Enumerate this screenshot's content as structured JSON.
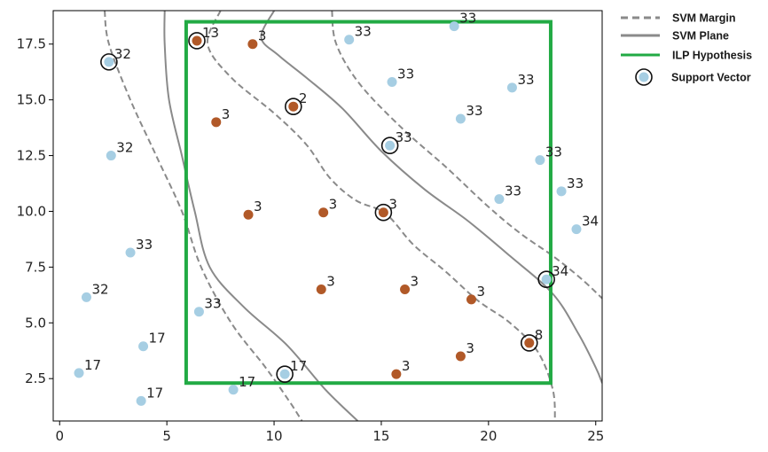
{
  "colors": {
    "class_a": "#a6cee3",
    "class_b": "#b15928",
    "svm_line": "#8a8a8a",
    "ilp_box": "#22aa44",
    "support_ring": "#111111",
    "axis": "#000000"
  },
  "legend": {
    "position": "outside-right",
    "items": [
      {
        "key": "margin",
        "label": "SVM Margin",
        "style": "dashed"
      },
      {
        "key": "plane",
        "label": "SVM Plane",
        "style": "solid"
      },
      {
        "key": "ilp",
        "label": "ILP Hypothesis",
        "style": "box"
      },
      {
        "key": "sv",
        "label": "Support Vector",
        "style": "ring"
      }
    ]
  },
  "chart_data": {
    "type": "scatter",
    "title": "",
    "xlabel": "",
    "ylabel": "",
    "xlim": [
      -0.3,
      25.3
    ],
    "ylim": [
      0.6,
      19.0
    ],
    "grid": false,
    "xticks": [
      0,
      5,
      10,
      15,
      20,
      25
    ],
    "yticks": [
      2.5,
      5.0,
      7.5,
      10.0,
      12.5,
      15.0,
      17.5
    ],
    "xtick_labels": [
      "0",
      "5",
      "10",
      "15",
      "20",
      "25"
    ],
    "ytick_labels": [
      "2.5",
      "5.0",
      "7.5",
      "10.0",
      "12.5",
      "15.0",
      "17.5"
    ],
    "ilp_box": {
      "x": [
        5.9,
        22.9
      ],
      "y": [
        2.3,
        18.5
      ]
    },
    "points": [
      {
        "x": 2.3,
        "y": 16.7,
        "label": "32",
        "cls": "a",
        "sv": true
      },
      {
        "x": 2.4,
        "y": 12.5,
        "label": "32",
        "cls": "a",
        "sv": false
      },
      {
        "x": 3.3,
        "y": 8.15,
        "label": "33",
        "cls": "a",
        "sv": false
      },
      {
        "x": 1.25,
        "y": 6.15,
        "label": "32",
        "cls": "a",
        "sv": false
      },
      {
        "x": 3.9,
        "y": 3.95,
        "label": "17",
        "cls": "a",
        "sv": false
      },
      {
        "x": 0.9,
        "y": 2.75,
        "label": "17",
        "cls": "a",
        "sv": false
      },
      {
        "x": 3.8,
        "y": 1.5,
        "label": "17",
        "cls": "a",
        "sv": false
      },
      {
        "x": 6.5,
        "y": 5.5,
        "label": "33",
        "cls": "a",
        "sv": false
      },
      {
        "x": 8.1,
        "y": 2.0,
        "label": "17",
        "cls": "a",
        "sv": false
      },
      {
        "x": 10.5,
        "y": 2.7,
        "label": "17",
        "cls": "a",
        "sv": true
      },
      {
        "x": 13.5,
        "y": 17.7,
        "label": "33",
        "cls": "a",
        "sv": false
      },
      {
        "x": 18.4,
        "y": 18.3,
        "label": "33",
        "cls": "a",
        "sv": false
      },
      {
        "x": 15.5,
        "y": 15.8,
        "label": "33",
        "cls": "a",
        "sv": false
      },
      {
        "x": 21.1,
        "y": 15.55,
        "label": "33",
        "cls": "a",
        "sv": false
      },
      {
        "x": 18.7,
        "y": 14.15,
        "label": "33",
        "cls": "a",
        "sv": false
      },
      {
        "x": 15.4,
        "y": 12.95,
        "label": "33",
        "cls": "a",
        "sv": true
      },
      {
        "x": 22.4,
        "y": 12.3,
        "label": "33",
        "cls": "a",
        "sv": false
      },
      {
        "x": 20.5,
        "y": 10.55,
        "label": "33",
        "cls": "a",
        "sv": false
      },
      {
        "x": 23.4,
        "y": 10.9,
        "label": "33",
        "cls": "a",
        "sv": false
      },
      {
        "x": 24.1,
        "y": 9.2,
        "label": "34",
        "cls": "a",
        "sv": false
      },
      {
        "x": 22.7,
        "y": 6.95,
        "label": "34",
        "cls": "a",
        "sv": true
      },
      {
        "x": 6.4,
        "y": 17.65,
        "label": "13",
        "cls": "b",
        "sv": true
      },
      {
        "x": 9.0,
        "y": 17.5,
        "label": "3",
        "cls": "b",
        "sv": false
      },
      {
        "x": 10.9,
        "y": 14.7,
        "label": "2",
        "cls": "b",
        "sv": true
      },
      {
        "x": 7.3,
        "y": 14.0,
        "label": "3",
        "cls": "b",
        "sv": false
      },
      {
        "x": 8.8,
        "y": 9.85,
        "label": "3",
        "cls": "b",
        "sv": false
      },
      {
        "x": 12.3,
        "y": 9.95,
        "label": "3",
        "cls": "b",
        "sv": false
      },
      {
        "x": 15.1,
        "y": 9.95,
        "label": "3",
        "cls": "b",
        "sv": true
      },
      {
        "x": 12.2,
        "y": 6.5,
        "label": "3",
        "cls": "b",
        "sv": false
      },
      {
        "x": 16.1,
        "y": 6.5,
        "label": "3",
        "cls": "b",
        "sv": false
      },
      {
        "x": 19.2,
        "y": 6.05,
        "label": "3",
        "cls": "b",
        "sv": false
      },
      {
        "x": 21.9,
        "y": 4.1,
        "label": "8",
        "cls": "b",
        "sv": true
      },
      {
        "x": 18.7,
        "y": 3.5,
        "label": "3",
        "cls": "b",
        "sv": false
      },
      {
        "x": 15.7,
        "y": 2.7,
        "label": "3",
        "cls": "b",
        "sv": false
      }
    ],
    "curves": [
      {
        "name": "margin",
        "style": "dashed",
        "points": [
          [
            2.1,
            19.0
          ],
          [
            2.3,
            17.5
          ],
          [
            3.3,
            15.0
          ],
          [
            4.5,
            12.5
          ],
          [
            5.7,
            10.0
          ],
          [
            6.6,
            7.5
          ],
          [
            8.0,
            5.0
          ],
          [
            9.6,
            3.0
          ],
          [
            10.7,
            1.5
          ],
          [
            11.3,
            0.6
          ]
        ]
      },
      {
        "name": "plane",
        "style": "solid",
        "points": [
          [
            4.9,
            19.0
          ],
          [
            4.9,
            17.5
          ],
          [
            5.1,
            15.0
          ],
          [
            5.7,
            12.5
          ],
          [
            6.3,
            10.0
          ],
          [
            7.0,
            7.5
          ],
          [
            8.6,
            5.7
          ],
          [
            10.6,
            4.0
          ],
          [
            12.4,
            2.0
          ],
          [
            13.9,
            0.6
          ]
        ]
      },
      {
        "name": "margin",
        "style": "dashed",
        "points": [
          [
            7.5,
            19.0
          ],
          [
            6.9,
            17.5
          ],
          [
            8.0,
            16.0
          ],
          [
            10.0,
            14.4
          ],
          [
            11.5,
            13.0
          ],
          [
            12.6,
            11.5
          ],
          [
            13.8,
            10.5
          ],
          [
            15.2,
            9.9
          ],
          [
            16.5,
            8.5
          ],
          [
            18.0,
            7.3
          ],
          [
            19.5,
            6.0
          ],
          [
            21.0,
            5.0
          ],
          [
            22.3,
            3.7
          ],
          [
            23.0,
            2.0
          ],
          [
            23.1,
            0.6
          ]
        ]
      },
      {
        "name": "plane",
        "style": "solid",
        "points": [
          [
            10.0,
            19.0
          ],
          [
            9.4,
            17.8
          ],
          [
            10.2,
            17.0
          ],
          [
            11.5,
            16.0
          ],
          [
            13.2,
            14.6
          ],
          [
            15.0,
            12.7
          ],
          [
            17.0,
            11.0
          ],
          [
            19.0,
            9.6
          ],
          [
            21.0,
            8.0
          ],
          [
            23.0,
            6.3
          ],
          [
            24.2,
            4.5
          ],
          [
            25.0,
            3.0
          ],
          [
            25.3,
            2.3
          ]
        ]
      },
      {
        "name": "margin",
        "style": "dashed",
        "points": [
          [
            12.7,
            19.0
          ],
          [
            12.9,
            17.5
          ],
          [
            14.0,
            15.7
          ],
          [
            16.0,
            13.7
          ],
          [
            18.0,
            12.0
          ],
          [
            20.0,
            10.2
          ],
          [
            21.5,
            9.0
          ],
          [
            23.0,
            8.0
          ],
          [
            24.3,
            7.0
          ],
          [
            25.3,
            6.1
          ]
        ]
      }
    ]
  }
}
